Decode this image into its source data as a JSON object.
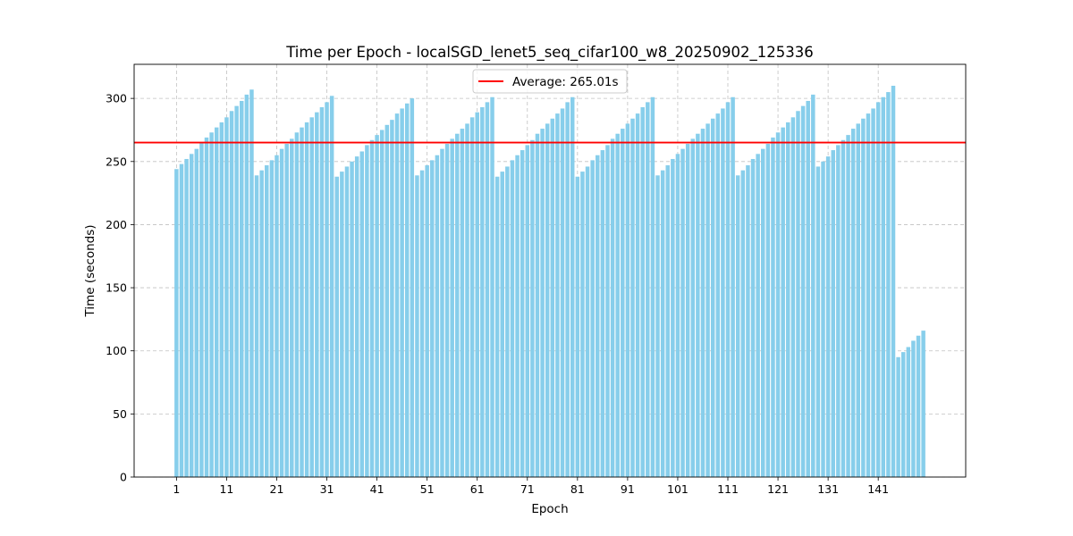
{
  "chart_data": {
    "type": "bar",
    "title": "Time per Epoch - localSGD_lenet5_seq_cifar100_w8_20250902_125336",
    "xlabel": "Epoch",
    "ylabel": "Time (seconds)",
    "ylim": [
      0,
      327
    ],
    "x_tick_labels": [
      "1",
      "11",
      "21",
      "31",
      "41",
      "51",
      "61",
      "71",
      "81",
      "91",
      "101",
      "111",
      "121",
      "131",
      "141"
    ],
    "y_tick_labels": [
      "0",
      "50",
      "100",
      "150",
      "200",
      "250",
      "300"
    ],
    "grid": true,
    "bar_color": "#87ceeb",
    "average": {
      "value": 265.01,
      "label": "Average: 265.01s",
      "color": "#ff0000"
    },
    "legend_position": "top-center",
    "epochs_first": 1,
    "values": [
      244,
      248,
      252,
      256,
      260,
      265,
      269,
      273,
      277,
      281,
      285,
      290,
      294,
      298,
      303,
      307,
      239,
      243,
      247,
      251,
      255,
      260,
      264,
      268,
      273,
      277,
      281,
      285,
      289,
      293,
      297,
      302,
      238,
      242,
      246,
      250,
      254,
      258,
      263,
      267,
      271,
      275,
      279,
      283,
      288,
      292,
      296,
      300,
      239,
      243,
      247,
      251,
      255,
      260,
      264,
      268,
      272,
      276,
      280,
      285,
      289,
      293,
      297,
      301,
      238,
      242,
      246,
      251,
      255,
      259,
      263,
      267,
      272,
      276,
      280,
      284,
      288,
      292,
      297,
      301,
      238,
      242,
      246,
      251,
      255,
      259,
      263,
      268,
      272,
      276,
      280,
      284,
      288,
      293,
      297,
      301,
      239,
      243,
      247,
      252,
      256,
      260,
      264,
      268,
      272,
      276,
      280,
      284,
      288,
      292,
      297,
      301,
      239,
      243,
      247,
      252,
      256,
      260,
      264,
      269,
      273,
      277,
      281,
      285,
      290,
      294,
      298,
      303,
      246,
      250,
      254,
      259,
      263,
      267,
      271,
      276,
      280,
      284,
      288,
      292,
      297,
      301,
      305,
      310,
      95,
      99,
      103,
      108,
      112,
      116
    ]
  }
}
